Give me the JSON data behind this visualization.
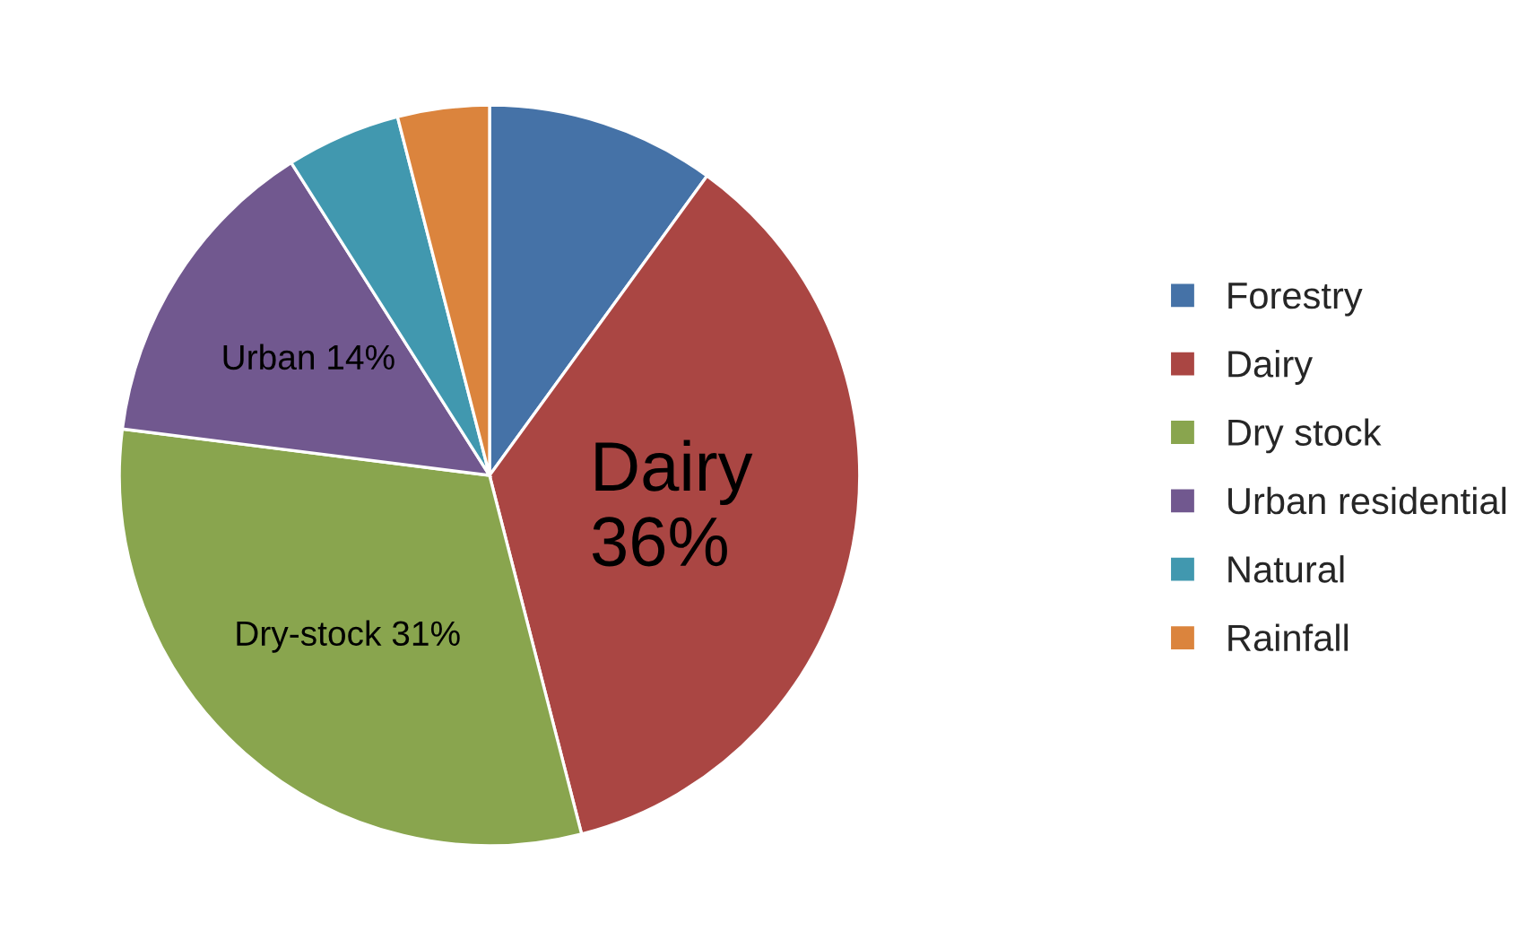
{
  "chart_data": {
    "type": "pie",
    "categories": [
      "Forestry",
      "Dairy",
      "Dry stock",
      "Urban residential",
      "Natural",
      "Rainfall"
    ],
    "values": [
      10,
      36,
      31,
      14,
      5,
      4
    ],
    "colors": [
      "#4572a7",
      "#aa4643",
      "#89a54e",
      "#71588f",
      "#4198af",
      "#db843d"
    ],
    "value_labels": [
      null,
      "Dairy\n36%",
      "Dry-stock 31%",
      "Urban 14%",
      null,
      null
    ],
    "legend": "right"
  }
}
